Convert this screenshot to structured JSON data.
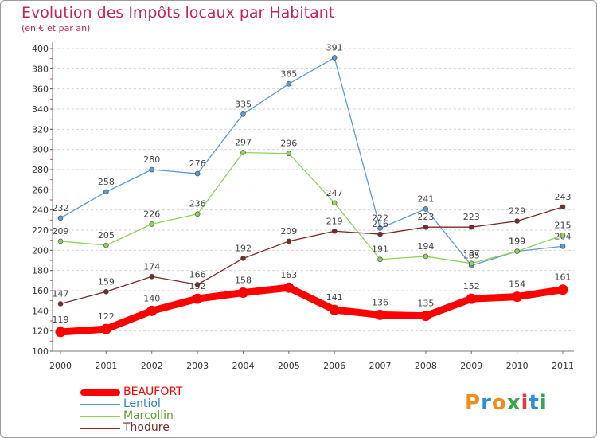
{
  "header": {
    "title": "Evolution des Impôts locaux par Habitant",
    "subtitle": "(en € et par an)"
  },
  "logo": {
    "text": "Proxiti",
    "colors": [
      "#f28c1a",
      "#2e8fd8",
      "#f28c1a",
      "#37a64a",
      "#e23b3b",
      "#2e8fd8",
      "#37a64a"
    ]
  },
  "chart_data": {
    "type": "line",
    "title": "Evolution des Impôts locaux par Habitant",
    "subtitle": "(en € et par an)",
    "x": [
      "2000",
      "2001",
      "2002",
      "2003",
      "2004",
      "2005",
      "2006",
      "2007",
      "2008",
      "2009",
      "2010",
      "2011"
    ],
    "ylim": [
      100,
      400
    ],
    "yticks": [
      100,
      120,
      140,
      160,
      180,
      200,
      220,
      240,
      260,
      280,
      300,
      320,
      340,
      360,
      380,
      400
    ],
    "grid": "horizontal",
    "legend_position": "bottom-left",
    "series": [
      {
        "name": "BEAUFORT",
        "color": "#ff0000",
        "values": [
          119,
          122,
          140,
          152,
          158,
          163,
          141,
          136,
          135,
          152,
          154,
          161
        ]
      },
      {
        "name": "Lentiol",
        "color": "#5b9bd5",
        "values": [
          232,
          258,
          280,
          276,
          335,
          365,
          391,
          222,
          241,
          185,
          199,
          204
        ]
      },
      {
        "name": "Marcollin",
        "color": "#8fd35a",
        "values": [
          209,
          205,
          226,
          236,
          297,
          296,
          247,
          191,
          194,
          187,
          199,
          215
        ]
      },
      {
        "name": "Thodure",
        "color": "#7a2a2a",
        "values": [
          147,
          159,
          174,
          166,
          192,
          209,
          219,
          216,
          223,
          223,
          229,
          243
        ]
      }
    ]
  }
}
